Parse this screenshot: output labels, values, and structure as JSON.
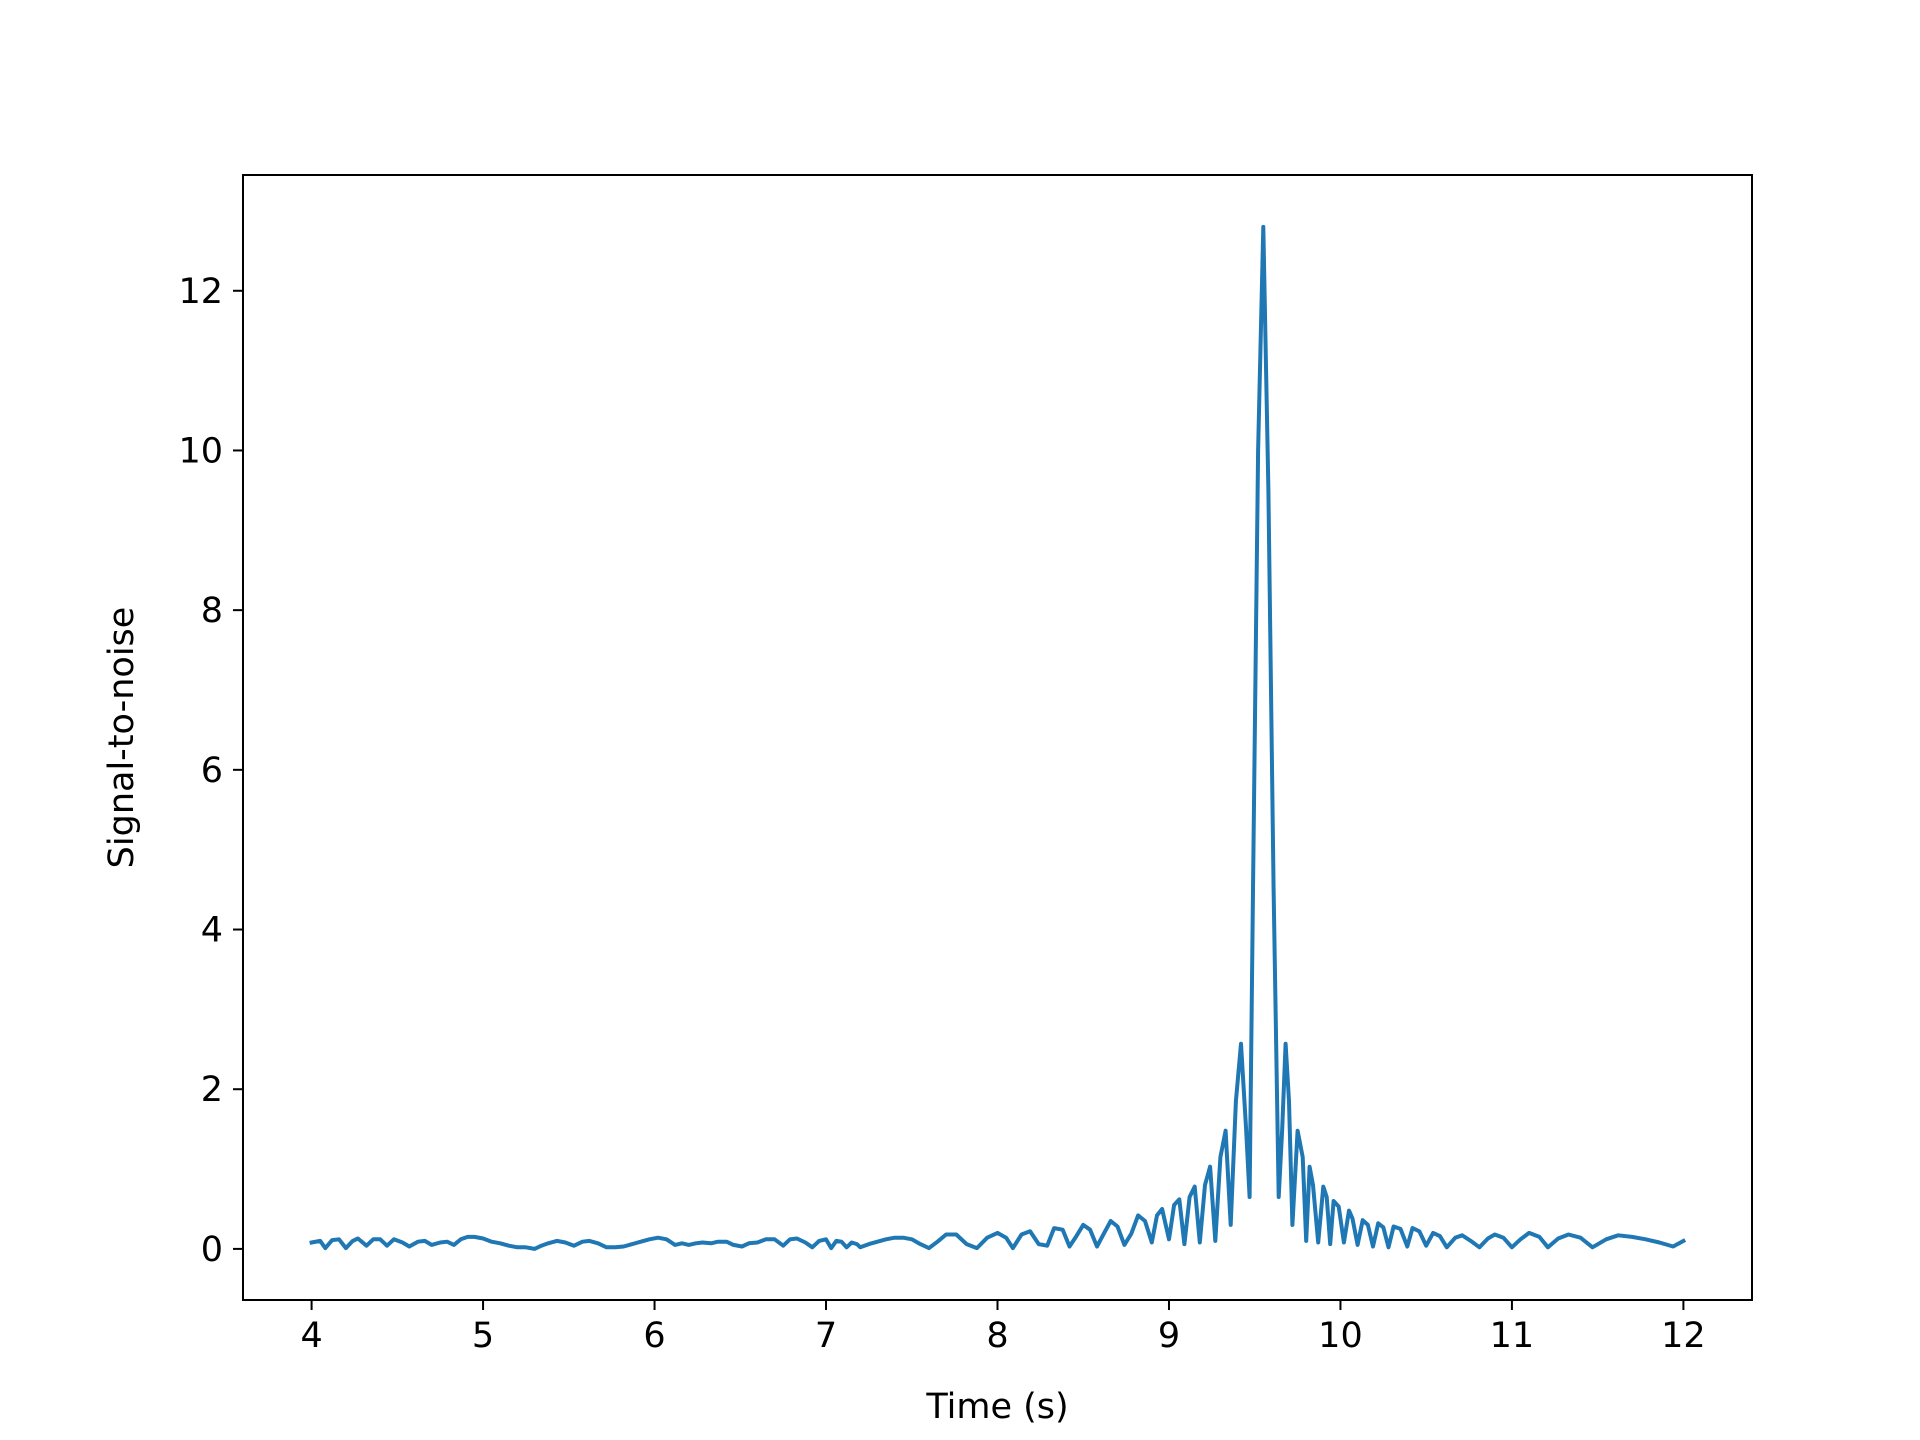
{
  "chart_data": {
    "type": "line",
    "title": "",
    "xlabel": "Time (s)",
    "ylabel": "Signal-to-noise",
    "xlim": [
      3.6,
      12.4
    ],
    "ylim": [
      -0.64,
      13.45
    ],
    "xticks": [
      4,
      5,
      6,
      7,
      8,
      9,
      10,
      11,
      12
    ],
    "yticks": [
      0,
      2,
      4,
      6,
      8,
      10,
      12
    ],
    "grid": false,
    "legend": "none",
    "line_color": "#1f77b4",
    "series": [
      {
        "x": [
          4.0,
          4.05,
          4.08,
          4.12,
          4.16,
          4.2,
          4.24,
          4.27,
          4.32,
          4.36,
          4.4,
          4.44,
          4.48,
          4.53,
          4.57,
          4.62,
          4.66,
          4.7,
          4.75,
          4.79,
          4.83,
          4.87,
          4.91,
          4.95,
          5.0,
          5.05,
          5.1,
          5.15,
          5.2,
          5.25,
          5.3,
          5.34,
          5.38,
          5.43,
          5.48,
          5.53,
          5.58,
          5.62,
          5.67,
          5.72,
          5.77,
          5.82,
          5.87,
          5.92,
          5.97,
          6.02,
          6.07,
          6.12,
          6.16,
          6.2,
          6.24,
          6.28,
          6.33,
          6.37,
          6.42,
          6.46,
          6.51,
          6.55,
          6.6,
          6.65,
          6.7,
          6.75,
          6.79,
          6.83,
          6.88,
          6.92,
          6.96,
          7.0,
          7.03,
          7.06,
          7.09,
          7.12,
          7.15,
          7.18,
          7.2,
          7.25,
          7.3,
          7.35,
          7.4,
          7.45,
          7.5,
          7.55,
          7.6,
          7.65,
          7.7,
          7.76,
          7.82,
          7.88,
          7.94,
          8.0,
          8.05,
          8.09,
          8.14,
          8.19,
          8.24,
          8.29,
          8.33,
          8.38,
          8.42,
          8.46,
          8.5,
          8.54,
          8.58,
          8.62,
          8.66,
          8.7,
          8.74,
          8.78,
          8.82,
          8.86,
          8.9,
          8.93,
          8.96,
          9.0,
          9.03,
          9.06,
          9.09,
          9.12,
          9.15,
          9.18,
          9.21,
          9.24,
          9.27,
          9.3,
          9.33,
          9.36,
          9.39,
          9.42,
          9.45,
          9.47,
          9.49,
          9.52,
          9.55,
          9.58,
          9.61,
          9.64,
          9.66,
          9.68,
          9.7,
          9.72,
          9.75,
          9.78,
          9.8,
          9.82,
          9.84,
          9.87,
          9.9,
          9.92,
          9.94,
          9.96,
          9.99,
          10.02,
          10.05,
          10.07,
          10.1,
          10.13,
          10.16,
          10.19,
          10.22,
          10.25,
          10.28,
          10.31,
          10.35,
          10.39,
          10.42,
          10.46,
          10.5,
          10.54,
          10.58,
          10.62,
          10.67,
          10.71,
          10.76,
          10.81,
          10.86,
          10.9,
          10.95,
          11.0,
          11.05,
          11.1,
          11.16,
          11.21,
          11.27,
          11.33,
          11.4,
          11.47,
          11.55,
          11.62,
          11.7,
          11.78,
          11.86,
          11.94,
          12.0
        ],
        "y": [
          0.08,
          0.1,
          0.01,
          0.11,
          0.12,
          0.01,
          0.1,
          0.13,
          0.04,
          0.12,
          0.12,
          0.04,
          0.12,
          0.08,
          0.03,
          0.09,
          0.1,
          0.05,
          0.08,
          0.09,
          0.05,
          0.12,
          0.15,
          0.15,
          0.13,
          0.09,
          0.07,
          0.04,
          0.02,
          0.02,
          0.0,
          0.04,
          0.07,
          0.1,
          0.08,
          0.04,
          0.09,
          0.1,
          0.07,
          0.02,
          0.02,
          0.03,
          0.06,
          0.09,
          0.12,
          0.14,
          0.12,
          0.05,
          0.07,
          0.05,
          0.07,
          0.08,
          0.07,
          0.09,
          0.09,
          0.05,
          0.03,
          0.07,
          0.08,
          0.12,
          0.12,
          0.04,
          0.12,
          0.13,
          0.08,
          0.02,
          0.1,
          0.12,
          0.01,
          0.1,
          0.09,
          0.02,
          0.08,
          0.06,
          0.02,
          0.06,
          0.09,
          0.12,
          0.14,
          0.14,
          0.12,
          0.06,
          0.01,
          0.09,
          0.18,
          0.18,
          0.06,
          0.01,
          0.14,
          0.2,
          0.14,
          0.01,
          0.18,
          0.22,
          0.06,
          0.04,
          0.26,
          0.24,
          0.03,
          0.16,
          0.3,
          0.24,
          0.03,
          0.19,
          0.35,
          0.28,
          0.05,
          0.19,
          0.42,
          0.35,
          0.08,
          0.42,
          0.5,
          0.12,
          0.55,
          0.62,
          0.06,
          0.65,
          0.78,
          0.08,
          0.8,
          1.03,
          0.1,
          1.15,
          1.48,
          0.3,
          1.85,
          2.57,
          1.5,
          0.65,
          4.5,
          10.0,
          12.8,
          9.5,
          4.5,
          0.65,
          1.5,
          2.57,
          1.85,
          0.3,
          1.48,
          1.15,
          0.1,
          1.03,
          0.8,
          0.08,
          0.78,
          0.65,
          0.06,
          0.6,
          0.53,
          0.08,
          0.48,
          0.38,
          0.05,
          0.36,
          0.3,
          0.03,
          0.32,
          0.27,
          0.02,
          0.28,
          0.25,
          0.03,
          0.26,
          0.22,
          0.04,
          0.2,
          0.16,
          0.02,
          0.14,
          0.17,
          0.1,
          0.02,
          0.13,
          0.18,
          0.14,
          0.02,
          0.12,
          0.2,
          0.15,
          0.02,
          0.13,
          0.18,
          0.14,
          0.02,
          0.12,
          0.17,
          0.15,
          0.12,
          0.08,
          0.03,
          0.1
        ]
      }
    ]
  }
}
